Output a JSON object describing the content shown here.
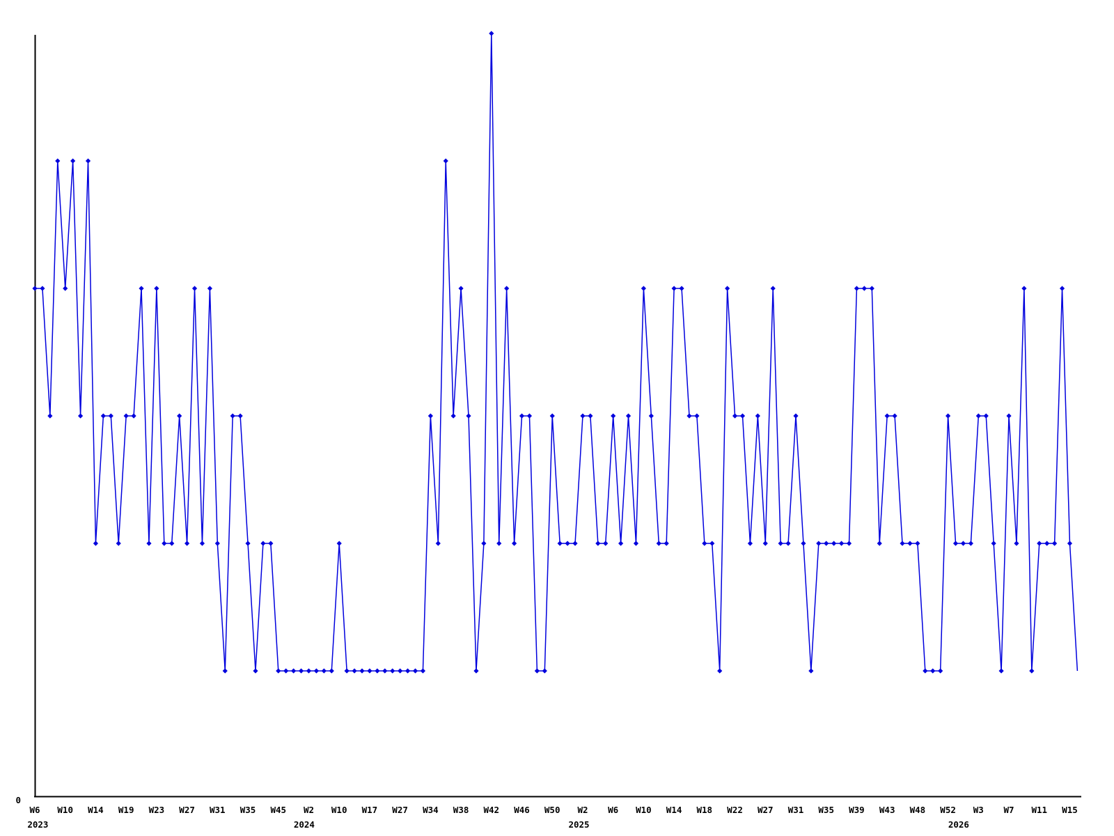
{
  "chart_data": {
    "type": "line",
    "title": "",
    "xlabel": "",
    "ylabel": "",
    "legend": false,
    "grid": false,
    "line_color": "#0000dd",
    "marker": "diamond",
    "marker_color": "#0000dd",
    "axis_color": "#000000",
    "background_color": "#ffffff",
    "y_axis": {
      "origin_label": "0",
      "min": 0,
      "max_visible": 6
    },
    "values": [
      4,
      4,
      3,
      5,
      4,
      5,
      3,
      5,
      2,
      3,
      3,
      2,
      3,
      3,
      4,
      2,
      4,
      2,
      2,
      3,
      2,
      4,
      2,
      4,
      2,
      1,
      3,
      3,
      2,
      1,
      2,
      2,
      1,
      1,
      1,
      1,
      1,
      1,
      1,
      1,
      2,
      1,
      1,
      1,
      1,
      1,
      1,
      1,
      1,
      1,
      1,
      1,
      3,
      2,
      5,
      3,
      4,
      3,
      1,
      2,
      6,
      2,
      4,
      2,
      3,
      3,
      1,
      1,
      3,
      2,
      2,
      2,
      3,
      3,
      2,
      2,
      3,
      2,
      3,
      2,
      4,
      3,
      2,
      2,
      4,
      4,
      3,
      3,
      2,
      2,
      1,
      4,
      3,
      3,
      2,
      3,
      2,
      4,
      2,
      2,
      3,
      2,
      1,
      2,
      2,
      2,
      2,
      2,
      4,
      4,
      4,
      2,
      3,
      3,
      2,
      2,
      2,
      1,
      1,
      1,
      3,
      2,
      2,
      2,
      3,
      3,
      2,
      1,
      3,
      2,
      4,
      1,
      2,
      2,
      2,
      4,
      2,
      1
    ],
    "last_point_has_marker": false,
    "tick_every": 4,
    "tick_labels": [
      "W6",
      "W10",
      "W14",
      "W19",
      "W23",
      "W27",
      "W31",
      "W35",
      "W45",
      "W2",
      "W10",
      "W17",
      "W27",
      "W34",
      "W38",
      "W42",
      "W46",
      "W50",
      "W2",
      "W6",
      "W10",
      "W14",
      "W18",
      "W22",
      "W27",
      "W31",
      "W35",
      "W39",
      "W43",
      "W48",
      "W52",
      "W3",
      "W7",
      "W11",
      "W15"
    ],
    "year_labels": [
      {
        "text": "2023",
        "index": 0.4
      },
      {
        "text": "2024",
        "index": 35.4
      },
      {
        "text": "2025",
        "index": 71.5
      },
      {
        "text": "2026",
        "index": 121.4
      }
    ]
  }
}
